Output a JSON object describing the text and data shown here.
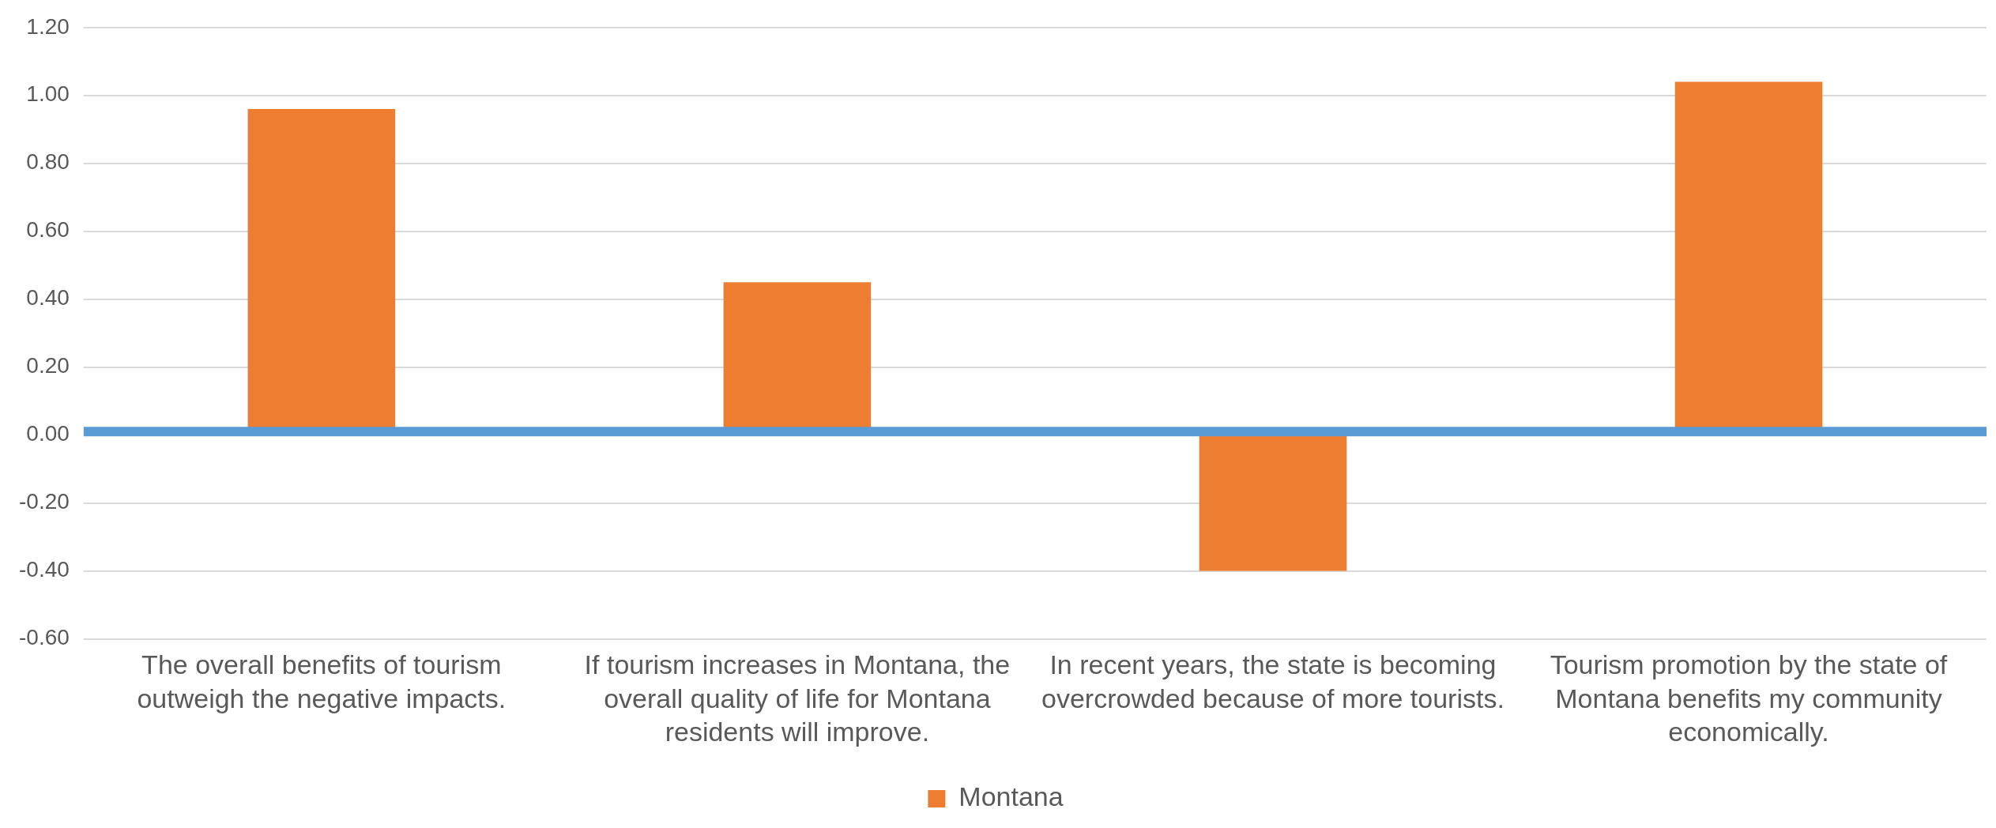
{
  "chart_data": {
    "type": "bar",
    "categories": [
      "The overall benefits of tourism outweigh the negative impacts.",
      "If tourism increases in Montana, the overall quality of life for Montana residents will improve.",
      "In recent years, the state is becoming overcrowded because of more tourists.",
      "Tourism promotion by the state of Montana benefits my community economically."
    ],
    "series": [
      {
        "name": "Montana",
        "color": "#ed7d31",
        "values": [
          0.96,
          0.45,
          -0.4,
          1.04
        ]
      }
    ],
    "ylim": [
      -0.6,
      1.2
    ],
    "yticks": [
      {
        "value": -0.6,
        "label": "-0.60"
      },
      {
        "value": -0.4,
        "label": "-0.40"
      },
      {
        "value": -0.2,
        "label": "-0.20"
      },
      {
        "value": 0,
        "label": "0.00"
      },
      {
        "value": 0.2,
        "label": "0.20"
      },
      {
        "value": 0.4,
        "label": "0.40"
      },
      {
        "value": 0.6,
        "label": "0.60"
      },
      {
        "value": 0.8,
        "label": "0.80"
      },
      {
        "value": 1.0,
        "label": "1.00"
      },
      {
        "value": 1.2,
        "label": "1.20"
      }
    ],
    "ref_lines": [
      {
        "axis": "y",
        "value": 0.01,
        "color": "#5b9bd5"
      }
    ],
    "grid": "y",
    "legend": "bottom"
  }
}
